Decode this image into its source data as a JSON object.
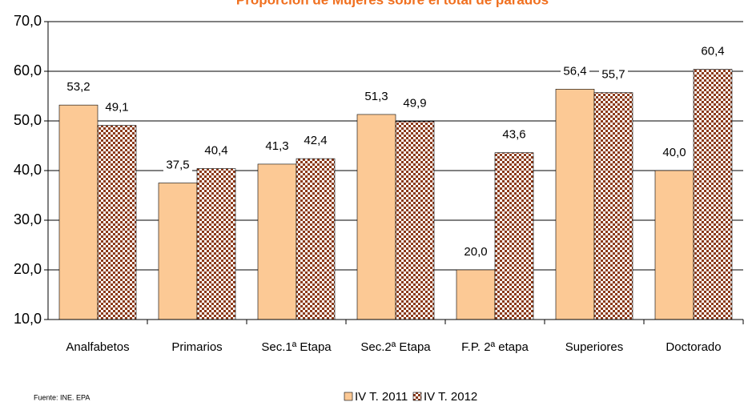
{
  "chart_data": {
    "type": "bar",
    "title": "Proporción de Mujeres sobre el total de parados",
    "categories": [
      "Analfabetos",
      "Primarios",
      "Sec.1ª Etapa",
      "Sec.2ª Etapa",
      "F.P. 2ª etapa",
      "Superiores",
      "Doctorado"
    ],
    "series": [
      {
        "name": "IV T. 2011",
        "color": "#fcc995",
        "values": [
          53.2,
          37.5,
          41.3,
          51.3,
          20.0,
          56.4,
          40.0
        ],
        "value_labels": [
          "53,2",
          "37,5",
          "41,3",
          "51,3",
          "20,0",
          "56,4",
          "40,0"
        ]
      },
      {
        "name": "IV T. 2012",
        "color": "#8b3a1a",
        "values": [
          49.1,
          40.4,
          42.4,
          49.9,
          43.6,
          55.7,
          60.4
        ],
        "value_labels": [
          "49,1",
          "40,4",
          "42,4",
          "49,9",
          "43,6",
          "55,7",
          "60,4"
        ]
      }
    ],
    "ylim": [
      10,
      70
    ],
    "yticks": [
      {
        "value": 10,
        "label": "10,0"
      },
      {
        "value": 20,
        "label": "20,0"
      },
      {
        "value": 30,
        "label": "30,0"
      },
      {
        "value": 40,
        "label": "40,0"
      },
      {
        "value": 50,
        "label": "50,0"
      },
      {
        "value": 60,
        "label": "60,0"
      },
      {
        "value": 70,
        "label": "70,0"
      }
    ],
    "grid": true,
    "source": "Fuente: INE. EPA"
  }
}
